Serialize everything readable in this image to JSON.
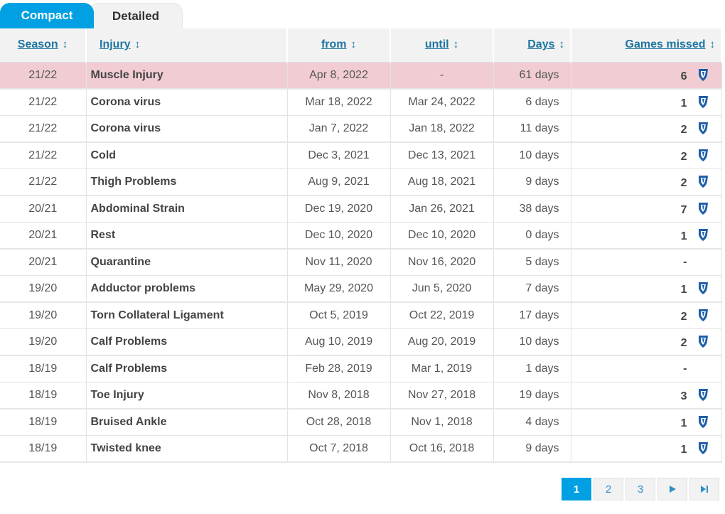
{
  "tabs": {
    "compact": "Compact",
    "detailed": "Detailed"
  },
  "columns": {
    "season": "Season",
    "injury": "Injury",
    "from": "from",
    "until": "until",
    "days": "Days",
    "games": "Games missed",
    "sort_icon": "↕"
  },
  "rows": [
    {
      "season": "21/22",
      "injury": "Muscle Injury",
      "from": "Apr 8, 2022",
      "until": "-",
      "days": "61 days",
      "games": "6",
      "club_icon": true,
      "highlight": true
    },
    {
      "season": "21/22",
      "injury": "Corona virus",
      "from": "Mar 18, 2022",
      "until": "Mar 24, 2022",
      "days": "6 days",
      "games": "1",
      "club_icon": true
    },
    {
      "season": "21/22",
      "injury": "Corona virus",
      "from": "Jan 7, 2022",
      "until": "Jan 18, 2022",
      "days": "11 days",
      "games": "2",
      "club_icon": true
    },
    {
      "season": "21/22",
      "injury": "Cold",
      "from": "Dec 3, 2021",
      "until": "Dec 13, 2021",
      "days": "10 days",
      "games": "2",
      "club_icon": true
    },
    {
      "season": "21/22",
      "injury": "Thigh Problems",
      "from": "Aug 9, 2021",
      "until": "Aug 18, 2021",
      "days": "9 days",
      "games": "2",
      "club_icon": true
    },
    {
      "season": "20/21",
      "injury": "Abdominal Strain",
      "from": "Dec 19, 2020",
      "until": "Jan 26, 2021",
      "days": "38 days",
      "games": "7",
      "club_icon": true
    },
    {
      "season": "20/21",
      "injury": "Rest",
      "from": "Dec 10, 2020",
      "until": "Dec 10, 2020",
      "days": "0 days",
      "games": "1",
      "club_icon": true
    },
    {
      "season": "20/21",
      "injury": "Quarantine",
      "from": "Nov 11, 2020",
      "until": "Nov 16, 2020",
      "days": "5 days",
      "games": "-",
      "club_icon": false
    },
    {
      "season": "19/20",
      "injury": "Adductor problems",
      "from": "May 29, 2020",
      "until": "Jun 5, 2020",
      "days": "7 days",
      "games": "1",
      "club_icon": true
    },
    {
      "season": "19/20",
      "injury": "Torn Collateral Ligament",
      "from": "Oct 5, 2019",
      "until": "Oct 22, 2019",
      "days": "17 days",
      "games": "2",
      "club_icon": true
    },
    {
      "season": "19/20",
      "injury": "Calf Problems",
      "from": "Aug 10, 2019",
      "until": "Aug 20, 2019",
      "days": "10 days",
      "games": "2",
      "club_icon": true
    },
    {
      "season": "18/19",
      "injury": "Calf Problems",
      "from": "Feb 28, 2019",
      "until": "Mar 1, 2019",
      "days": "1 days",
      "games": "-",
      "club_icon": false
    },
    {
      "season": "18/19",
      "injury": "Toe Injury",
      "from": "Nov 8, 2018",
      "until": "Nov 27, 2018",
      "days": "19 days",
      "games": "3",
      "club_icon": true
    },
    {
      "season": "18/19",
      "injury": "Bruised Ankle",
      "from": "Oct 28, 2018",
      "until": "Nov 1, 2018",
      "days": "4 days",
      "games": "1",
      "club_icon": true
    },
    {
      "season": "18/19",
      "injury": "Twisted knee",
      "from": "Oct 7, 2018",
      "until": "Oct 16, 2018",
      "days": "9 days",
      "games": "1",
      "club_icon": true
    }
  ],
  "pagination": {
    "pages": [
      "1",
      "2",
      "3"
    ],
    "current": "1",
    "next_icon": "play-next-icon",
    "last_icon": "skip-last-icon"
  },
  "colors": {
    "accent": "#00a0e3",
    "link": "#1d75a3",
    "highlight_row": "#f1cdd3",
    "club_icon": "#1e5fa8"
  }
}
